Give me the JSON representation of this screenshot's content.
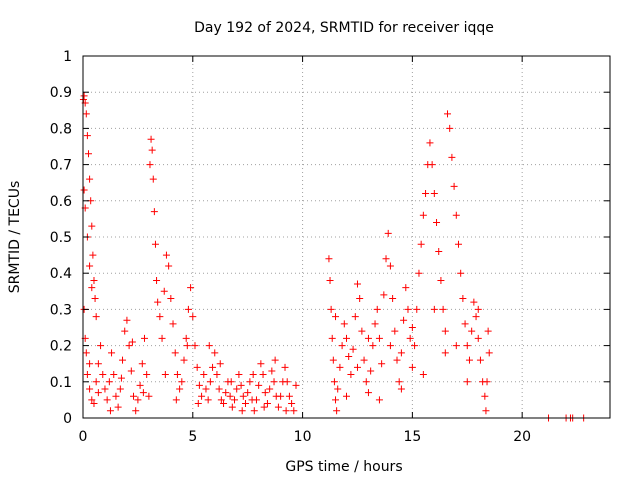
{
  "chart_data": {
    "type": "scatter",
    "title": "Day 192 of 2024, SRMTID for receiver iqqe",
    "xlabel": "GPS time / hours",
    "ylabel": "SRMTID / TECUs",
    "xlim": [
      0,
      24
    ],
    "ylim": [
      0,
      1
    ],
    "x_ticks": [
      0,
      5,
      10,
      15,
      20
    ],
    "x_tick_labels": [
      "0",
      "5",
      "10",
      "15",
      "20"
    ],
    "y_ticks": [
      0,
      0.1,
      0.2,
      0.3,
      0.4,
      0.5,
      0.6,
      0.7,
      0.8,
      0.9,
      1
    ],
    "y_tick_labels": [
      "0",
      "0.1",
      "0.2",
      "0.3",
      "0.4",
      "0.5",
      "0.6",
      "0.7",
      "0.8",
      "0.9",
      "1"
    ],
    "grid": true,
    "marker": "plus",
    "color": "#ff0000",
    "series": [
      {
        "name": "SRMTID",
        "points": [
          [
            0.02,
            0.88
          ],
          [
            0.05,
            0.89
          ],
          [
            0.1,
            0.87
          ],
          [
            0.15,
            0.84
          ],
          [
            0.2,
            0.78
          ],
          [
            0.25,
            0.73
          ],
          [
            0.3,
            0.66
          ],
          [
            0.35,
            0.6
          ],
          [
            0.4,
            0.53
          ],
          [
            0.45,
            0.45
          ],
          [
            0.5,
            0.38
          ],
          [
            0.55,
            0.33
          ],
          [
            0.6,
            0.28
          ],
          [
            0.05,
            0.63
          ],
          [
            0.1,
            0.58
          ],
          [
            0.2,
            0.5
          ],
          [
            0.3,
            0.42
          ],
          [
            0.4,
            0.36
          ],
          [
            0.05,
            0.3
          ],
          [
            0.1,
            0.22
          ],
          [
            0.15,
            0.18
          ],
          [
            0.2,
            0.12
          ],
          [
            0.3,
            0.08
          ],
          [
            0.4,
            0.05
          ],
          [
            0.5,
            0.04
          ],
          [
            0.6,
            0.1
          ],
          [
            0.7,
            0.15
          ],
          [
            0.8,
            0.2
          ],
          [
            0.9,
            0.12
          ],
          [
            1.0,
            0.08
          ],
          [
            1.1,
            0.05
          ],
          [
            1.2,
            0.1
          ],
          [
            1.3,
            0.18
          ],
          [
            1.4,
            0.12
          ],
          [
            1.5,
            0.06
          ],
          [
            1.6,
            0.03
          ],
          [
            1.7,
            0.08
          ],
          [
            1.8,
            0.16
          ],
          [
            1.9,
            0.24
          ],
          [
            2.0,
            0.27
          ],
          [
            2.1,
            0.2
          ],
          [
            2.2,
            0.13
          ],
          [
            2.3,
            0.06
          ],
          [
            2.4,
            0.02
          ],
          [
            2.5,
            0.05
          ],
          [
            2.6,
            0.09
          ],
          [
            2.7,
            0.15
          ],
          [
            2.8,
            0.22
          ],
          [
            2.9,
            0.12
          ],
          [
            3.0,
            0.06
          ],
          [
            3.05,
            0.7
          ],
          [
            3.1,
            0.77
          ],
          [
            3.15,
            0.74
          ],
          [
            3.2,
            0.66
          ],
          [
            3.25,
            0.57
          ],
          [
            3.3,
            0.48
          ],
          [
            3.35,
            0.38
          ],
          [
            3.4,
            0.32
          ],
          [
            3.5,
            0.28
          ],
          [
            3.6,
            0.22
          ],
          [
            3.7,
            0.35
          ],
          [
            3.8,
            0.45
          ],
          [
            3.9,
            0.42
          ],
          [
            4.0,
            0.33
          ],
          [
            4.1,
            0.26
          ],
          [
            4.2,
            0.18
          ],
          [
            4.3,
            0.12
          ],
          [
            4.4,
            0.08
          ],
          [
            4.5,
            0.1
          ],
          [
            4.6,
            0.16
          ],
          [
            4.7,
            0.22
          ],
          [
            4.8,
            0.3
          ],
          [
            4.9,
            0.36
          ],
          [
            5.0,
            0.28
          ],
          [
            5.1,
            0.2
          ],
          [
            5.2,
            0.14
          ],
          [
            5.3,
            0.09
          ],
          [
            5.4,
            0.06
          ],
          [
            5.5,
            0.12
          ],
          [
            5.6,
            0.08
          ],
          [
            5.7,
            0.05
          ],
          [
            5.8,
            0.1
          ],
          [
            5.9,
            0.14
          ],
          [
            6.0,
            0.18
          ],
          [
            6.1,
            0.12
          ],
          [
            6.2,
            0.08
          ],
          [
            6.3,
            0.05
          ],
          [
            6.4,
            0.04
          ],
          [
            6.5,
            0.07
          ],
          [
            6.6,
            0.1
          ],
          [
            6.7,
            0.06
          ],
          [
            6.8,
            0.03
          ],
          [
            6.9,
            0.05
          ],
          [
            7.0,
            0.08
          ],
          [
            7.1,
            0.12
          ],
          [
            7.2,
            0.09
          ],
          [
            7.3,
            0.06
          ],
          [
            7.4,
            0.04
          ],
          [
            7.5,
            0.07
          ],
          [
            7.6,
            0.1
          ],
          [
            7.7,
            0.05
          ],
          [
            7.8,
            0.02
          ],
          [
            7.9,
            0.05
          ],
          [
            8.0,
            0.09
          ],
          [
            8.1,
            0.15
          ],
          [
            8.2,
            0.12
          ],
          [
            8.3,
            0.07
          ],
          [
            8.4,
            0.04
          ],
          [
            8.5,
            0.08
          ],
          [
            8.6,
            0.13
          ],
          [
            8.7,
            0.1
          ],
          [
            8.8,
            0.06
          ],
          [
            8.9,
            0.03
          ],
          [
            9.0,
            0.06
          ],
          [
            9.1,
            0.1
          ],
          [
            9.2,
            0.14
          ],
          [
            9.3,
            0.1
          ],
          [
            9.4,
            0.06
          ],
          [
            9.5,
            0.04
          ],
          [
            9.6,
            0.02
          ],
          [
            0.3,
            0.15
          ],
          [
            0.7,
            0.07
          ],
          [
            1.25,
            0.02
          ],
          [
            1.75,
            0.11
          ],
          [
            2.25,
            0.21
          ],
          [
            2.75,
            0.07
          ],
          [
            3.75,
            0.12
          ],
          [
            4.25,
            0.05
          ],
          [
            4.75,
            0.2
          ],
          [
            5.25,
            0.04
          ],
          [
            5.75,
            0.2
          ],
          [
            6.25,
            0.15
          ],
          [
            6.75,
            0.1
          ],
          [
            7.25,
            0.02
          ],
          [
            7.75,
            0.12
          ],
          [
            8.25,
            0.03
          ],
          [
            8.75,
            0.16
          ],
          [
            9.25,
            0.02
          ],
          [
            9.7,
            0.09
          ],
          [
            11.2,
            0.44
          ],
          [
            11.25,
            0.38
          ],
          [
            11.3,
            0.3
          ],
          [
            11.35,
            0.22
          ],
          [
            11.4,
            0.16
          ],
          [
            11.45,
            0.1
          ],
          [
            11.5,
            0.05
          ],
          [
            11.55,
            0.02
          ],
          [
            11.6,
            0.08
          ],
          [
            11.7,
            0.14
          ],
          [
            11.8,
            0.2
          ],
          [
            11.9,
            0.26
          ],
          [
            12.0,
            0.22
          ],
          [
            12.1,
            0.17
          ],
          [
            12.2,
            0.12
          ],
          [
            12.3,
            0.19
          ],
          [
            12.4,
            0.28
          ],
          [
            12.5,
            0.37
          ],
          [
            12.6,
            0.33
          ],
          [
            12.7,
            0.24
          ],
          [
            12.8,
            0.16
          ],
          [
            12.9,
            0.1
          ],
          [
            13.0,
            0.07
          ],
          [
            13.1,
            0.13
          ],
          [
            13.2,
            0.2
          ],
          [
            13.3,
            0.26
          ],
          [
            13.4,
            0.3
          ],
          [
            13.5,
            0.22
          ],
          [
            13.6,
            0.15
          ],
          [
            13.7,
            0.34
          ],
          [
            13.8,
            0.44
          ],
          [
            13.9,
            0.51
          ],
          [
            14.0,
            0.42
          ],
          [
            14.1,
            0.33
          ],
          [
            14.2,
            0.24
          ],
          [
            14.3,
            0.16
          ],
          [
            14.4,
            0.1
          ],
          [
            14.5,
            0.18
          ],
          [
            14.6,
            0.27
          ],
          [
            14.7,
            0.36
          ],
          [
            14.8,
            0.3
          ],
          [
            14.9,
            0.22
          ],
          [
            15.0,
            0.14
          ],
          [
            15.1,
            0.2
          ],
          [
            15.2,
            0.3
          ],
          [
            15.3,
            0.4
          ],
          [
            15.4,
            0.48
          ],
          [
            15.5,
            0.56
          ],
          [
            15.6,
            0.62
          ],
          [
            15.7,
            0.7
          ],
          [
            15.8,
            0.76
          ],
          [
            15.9,
            0.7
          ],
          [
            16.0,
            0.62
          ],
          [
            16.1,
            0.54
          ],
          [
            16.2,
            0.46
          ],
          [
            16.3,
            0.38
          ],
          [
            16.4,
            0.3
          ],
          [
            16.5,
            0.24
          ],
          [
            16.6,
            0.84
          ],
          [
            16.7,
            0.8
          ],
          [
            16.8,
            0.72
          ],
          [
            16.9,
            0.64
          ],
          [
            17.0,
            0.56
          ],
          [
            17.1,
            0.48
          ],
          [
            17.2,
            0.4
          ],
          [
            17.3,
            0.33
          ],
          [
            17.4,
            0.26
          ],
          [
            17.5,
            0.2
          ],
          [
            17.6,
            0.16
          ],
          [
            17.7,
            0.24
          ],
          [
            17.8,
            0.32
          ],
          [
            17.9,
            0.28
          ],
          [
            18.0,
            0.22
          ],
          [
            18.1,
            0.16
          ],
          [
            18.2,
            0.1
          ],
          [
            18.3,
            0.06
          ],
          [
            18.35,
            0.02
          ],
          [
            18.4,
            0.1
          ],
          [
            18.5,
            0.18
          ],
          [
            11.5,
            0.28
          ],
          [
            12.0,
            0.06
          ],
          [
            12.5,
            0.14
          ],
          [
            13.0,
            0.22
          ],
          [
            13.5,
            0.05
          ],
          [
            14.0,
            0.2
          ],
          [
            14.5,
            0.08
          ],
          [
            15.0,
            0.25
          ],
          [
            15.5,
            0.12
          ],
          [
            16.0,
            0.3
          ],
          [
            16.5,
            0.18
          ],
          [
            17.0,
            0.2
          ],
          [
            17.5,
            0.1
          ],
          [
            18.0,
            0.3
          ],
          [
            18.45,
            0.24
          ],
          [
            21.2,
            0.0
          ],
          [
            22.0,
            0.0
          ],
          [
            22.2,
            0.0
          ],
          [
            22.3,
            0.0
          ],
          [
            22.8,
            0.0
          ]
        ]
      }
    ]
  }
}
